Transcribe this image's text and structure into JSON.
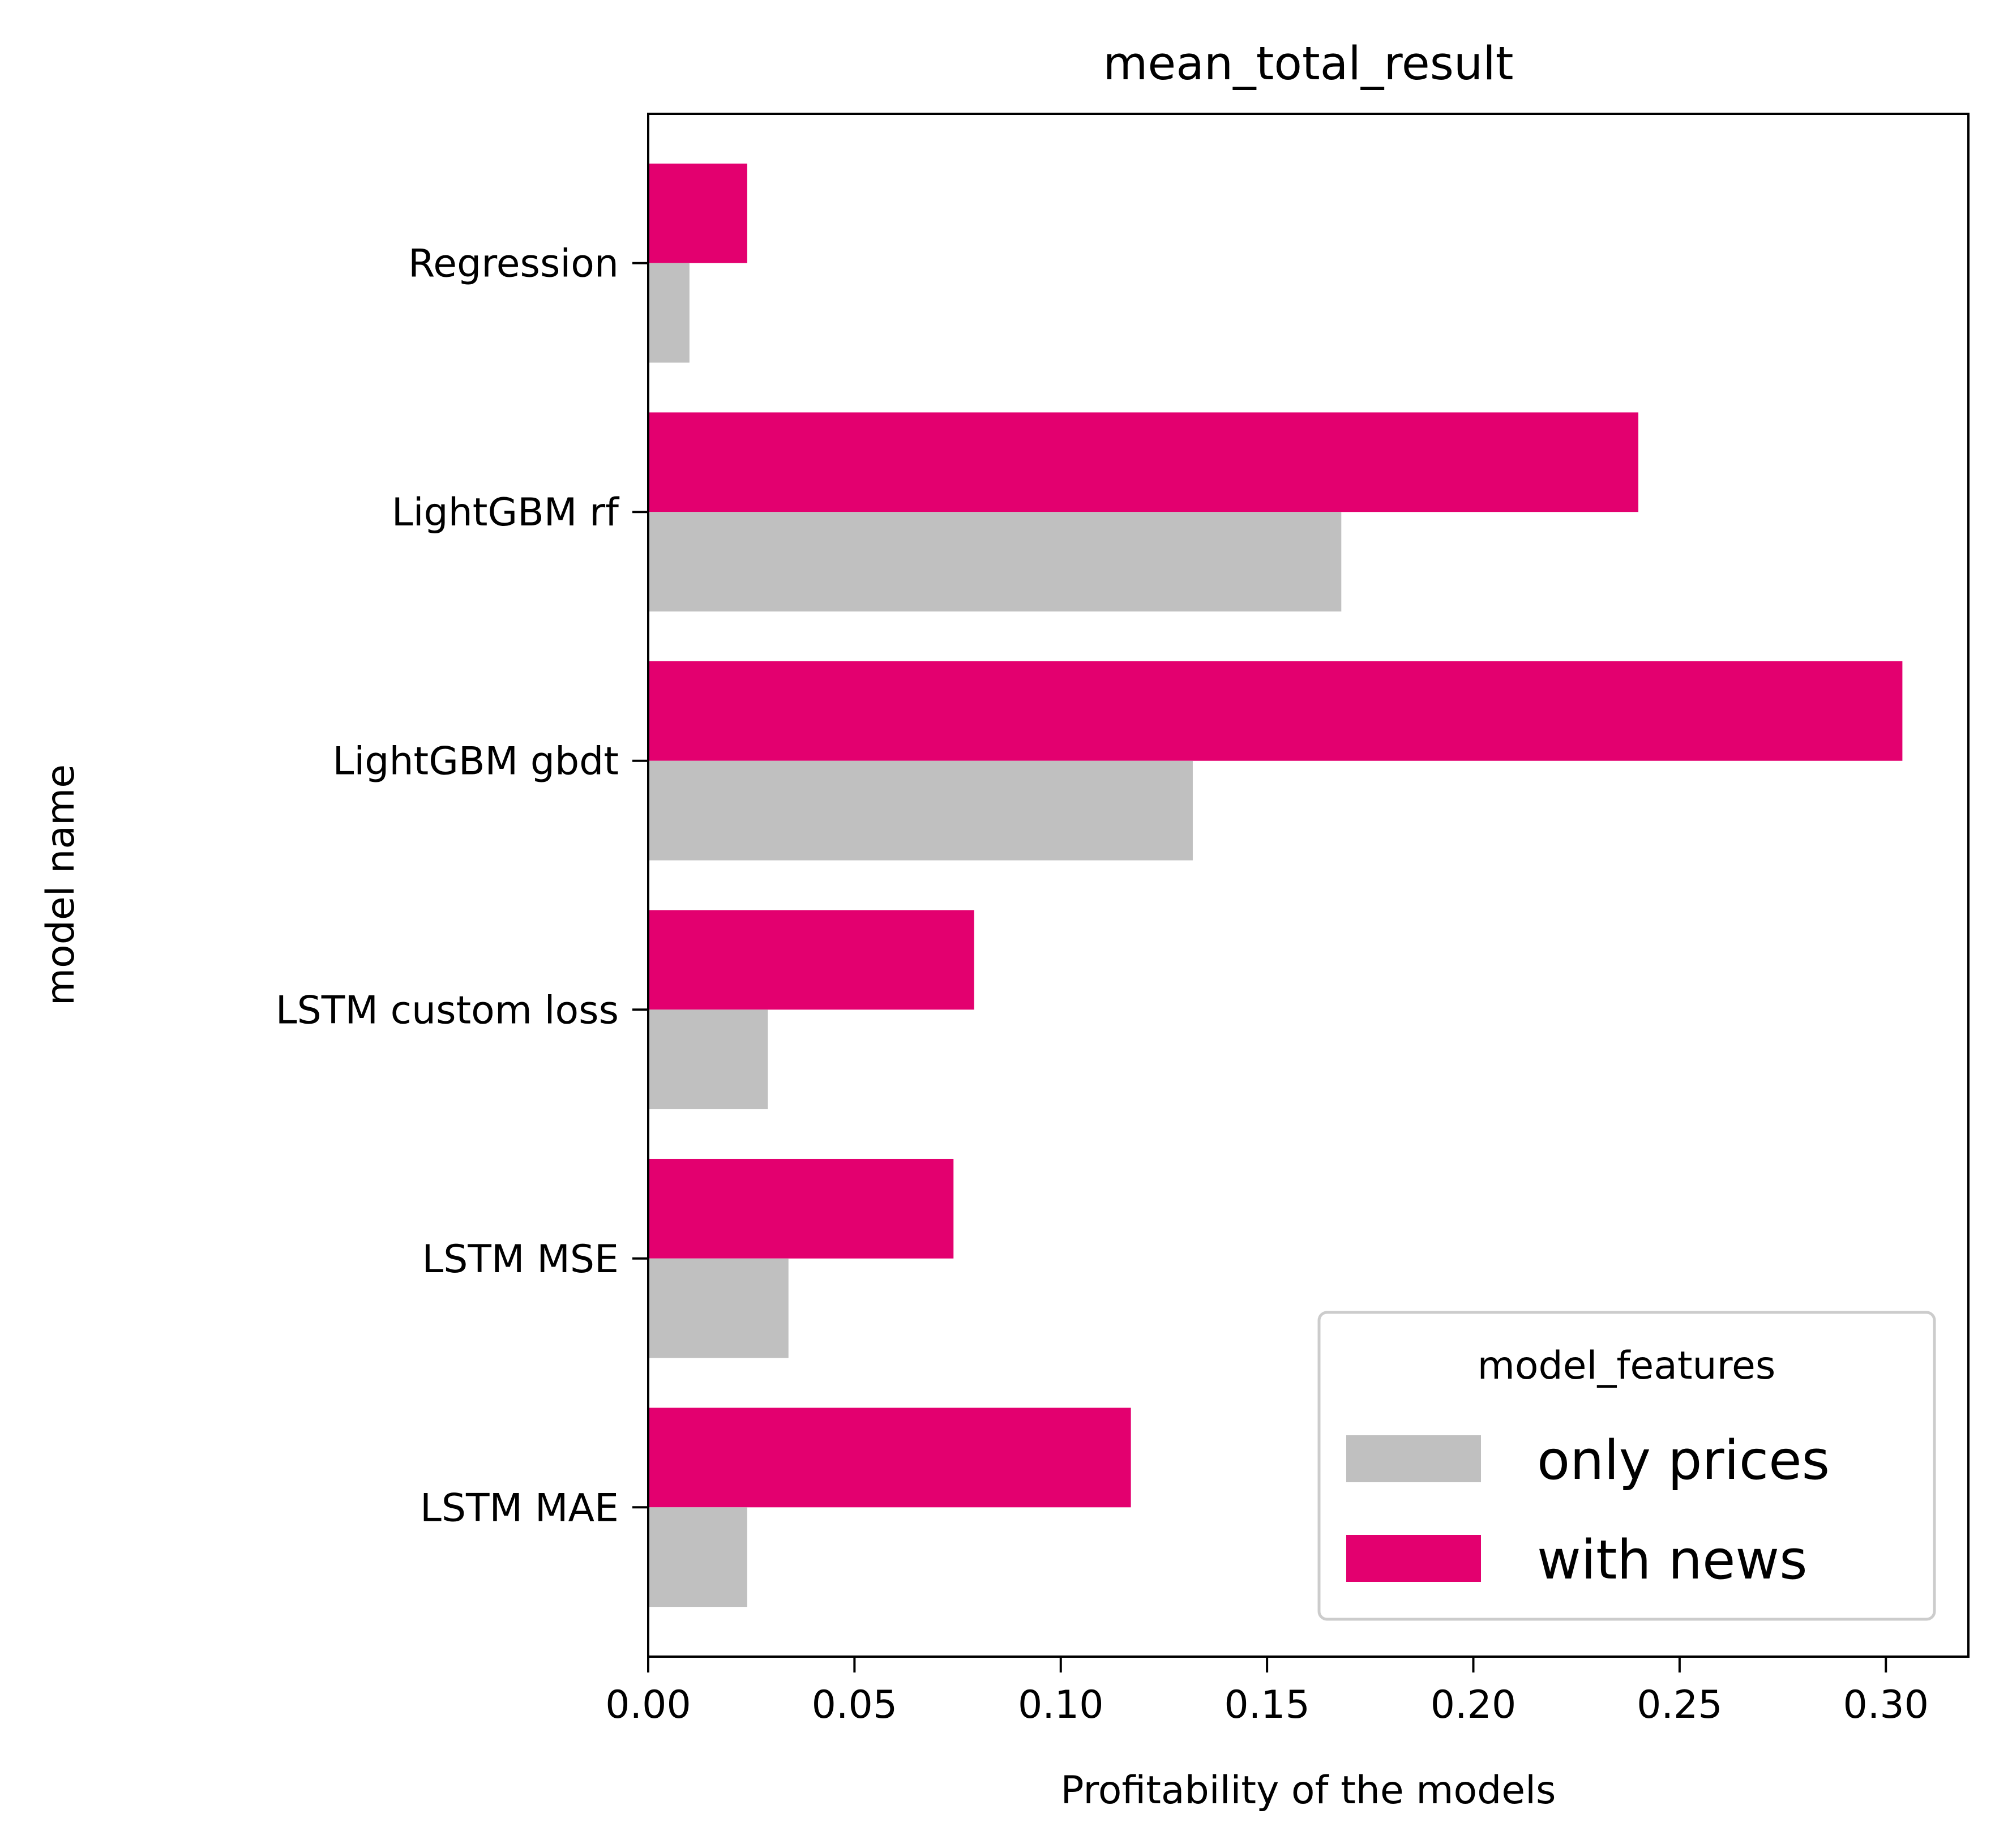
{
  "chart_data": {
    "type": "bar",
    "orientation": "horizontal",
    "title": "mean_total_result",
    "xlabel": "Profitability of the models",
    "ylabel": "model name",
    "xlim": [
      0.0,
      0.32
    ],
    "xticks": [
      0.0,
      0.05,
      0.1,
      0.15,
      0.2,
      0.25,
      0.3
    ],
    "xtick_labels": [
      "0.00",
      "0.05",
      "0.10",
      "0.15",
      "0.20",
      "0.25",
      "0.30"
    ],
    "categories": [
      "Regression",
      "LightGBM rf",
      "LightGBM gbdt",
      "LSTM custom loss",
      "LSTM MSE",
      "LSTM MAE"
    ],
    "series": [
      {
        "name": "only prices",
        "color": "#c0c0c0",
        "values": [
          0.01,
          0.168,
          0.132,
          0.029,
          0.034,
          0.024
        ]
      },
      {
        "name": "with news",
        "color": "#e3006f",
        "values": [
          0.024,
          0.24,
          0.304,
          0.079,
          0.074,
          0.117
        ]
      }
    ],
    "legend": {
      "title": "model_features",
      "placement": "lower-right"
    },
    "grid": false
  }
}
